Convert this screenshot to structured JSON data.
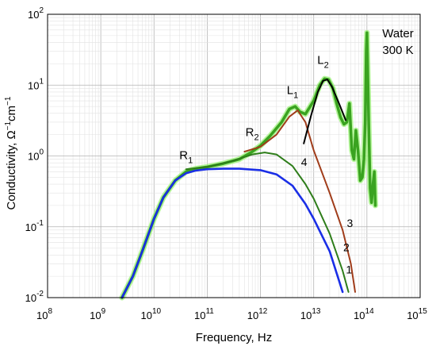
{
  "chart_data": {
    "type": "line",
    "xlabel": "Frequency, Hz",
    "ylabel": "Conductivity, Ω",
    "ylabel_unit_sup": "−1",
    "ylabel_unit2": "cm",
    "ylabel_unit2_sup": "−1",
    "x_scale": "log",
    "y_scale": "log",
    "xlim": [
      100000000,
      1000000000000000
    ],
    "ylim": [
      0.01,
      100
    ],
    "grid": true,
    "x_tick_mantissa": "10",
    "x_tick_exponents": [
      "8",
      "9",
      "10",
      "11",
      "12",
      "13",
      "14",
      "15"
    ],
    "y_tick_mantissa": "10",
    "y_tick_exponents": [
      "-2",
      "-1",
      "0",
      "1",
      "2"
    ],
    "annotation": {
      "line1": "Water",
      "line2": "300 K"
    },
    "peak_labels": [
      {
        "base": "R",
        "sub": "1",
        "x": 40000000000,
        "y": 0.9
      },
      {
        "base": "R",
        "sub": "2",
        "x": 700000000000,
        "y": 1.9
      },
      {
        "base": "L",
        "sub": "1",
        "x": 4000000000000,
        "y": 7.5
      },
      {
        "base": "L",
        "sub": "2",
        "x": 15000000000000,
        "y": 20
      }
    ],
    "curve_labels": [
      {
        "text": "1",
        "x": 46000000000000,
        "y": 0.022
      },
      {
        "text": "2",
        "x": 41000000000000,
        "y": 0.045
      },
      {
        "text": "3",
        "x": 48000000000000,
        "y": 0.1
      },
      {
        "text": "4",
        "x": 6600000000000,
        "y": 0.72
      }
    ],
    "series": [
      {
        "id": "1",
        "color": "#1a2ee6",
        "x": [
          2500000000,
          4000000000,
          6000000000,
          10000000000,
          15000000000,
          25000000000,
          40000000000,
          60000000000,
          100000000000,
          200000000000,
          400000000000,
          1000000000000,
          2000000000000,
          4000000000000,
          7000000000000,
          10000000000000,
          20000000000000,
          35000000000000
        ],
        "y": [
          0.01,
          0.02,
          0.045,
          0.13,
          0.26,
          0.45,
          0.57,
          0.62,
          0.65,
          0.66,
          0.66,
          0.63,
          0.55,
          0.38,
          0.21,
          0.13,
          0.045,
          0.012
        ]
      },
      {
        "id": "2",
        "color": "#2e7d1a",
        "x": [
          40000000000,
          100000000000,
          300000000000,
          700000000000,
          1200000000000,
          2000000000000,
          4000000000000,
          7000000000000,
          10000000000000,
          20000000000000,
          35000000000000,
          45000000000000
        ],
        "y": [
          0.65,
          0.7,
          0.85,
          1.05,
          1.12,
          1.05,
          0.72,
          0.4,
          0.25,
          0.08,
          0.024,
          0.012
        ]
      },
      {
        "id": "3",
        "color": "#a03c1a",
        "x": [
          500000000000,
          1000000000000,
          2000000000000,
          3500000000000,
          5000000000000,
          7000000000000,
          10000000000000,
          20000000000000,
          35000000000000,
          50000000000000,
          60000000000000
        ],
        "y": [
          1.15,
          1.35,
          2.0,
          3.6,
          4.4,
          3.0,
          1.2,
          0.3,
          0.09,
          0.03,
          0.012
        ]
      },
      {
        "id": "4",
        "color": "#000000",
        "x": [
          6500000000000,
          9000000000000,
          12000000000000,
          15000000000000,
          18000000000000,
          22000000000000,
          30000000000000,
          40000000000000
        ],
        "y": [
          1.5,
          3.8,
          8.0,
          11.5,
          12.0,
          9.5,
          5.5,
          3.2
        ]
      },
      {
        "id": "total",
        "color": "#3aa320",
        "x": [
          2500000000,
          4000000000,
          6000000000,
          10000000000,
          15000000000,
          25000000000,
          40000000000,
          60000000000,
          100000000000,
          200000000000,
          400000000000,
          700000000000,
          1000000000000,
          1500000000000,
          2500000000000,
          3500000000000,
          4500000000000,
          5500000000000,
          7000000000000,
          10000000000000,
          13000000000000,
          16000000000000,
          19000000000000,
          23000000000000,
          27000000000000,
          32000000000000,
          37000000000000,
          42000000000000,
          47000000000000,
          52000000000000,
          57000000000000,
          62000000000000,
          68000000000000,
          75000000000000,
          82000000000000,
          88000000000000,
          93000000000000,
          97000000000000,
          100000000000000,
          103000000000000,
          108000000000000,
          115000000000000,
          122000000000000,
          130000000000000,
          138000000000000,
          144000000000000
        ],
        "y": [
          0.01,
          0.02,
          0.045,
          0.13,
          0.26,
          0.45,
          0.6,
          0.66,
          0.7,
          0.78,
          0.9,
          1.15,
          1.4,
          1.9,
          3.0,
          4.6,
          5.0,
          4.2,
          3.9,
          6.0,
          10.0,
          12.3,
          12.0,
          9.0,
          5.5,
          3.5,
          2.8,
          3.0,
          5.5,
          1.2,
          0.9,
          2.3,
          1.2,
          0.45,
          0.5,
          0.9,
          3.0,
          30.0,
          55.0,
          20.0,
          3.0,
          0.35,
          0.22,
          0.4,
          0.6,
          0.2
        ]
      }
    ]
  }
}
